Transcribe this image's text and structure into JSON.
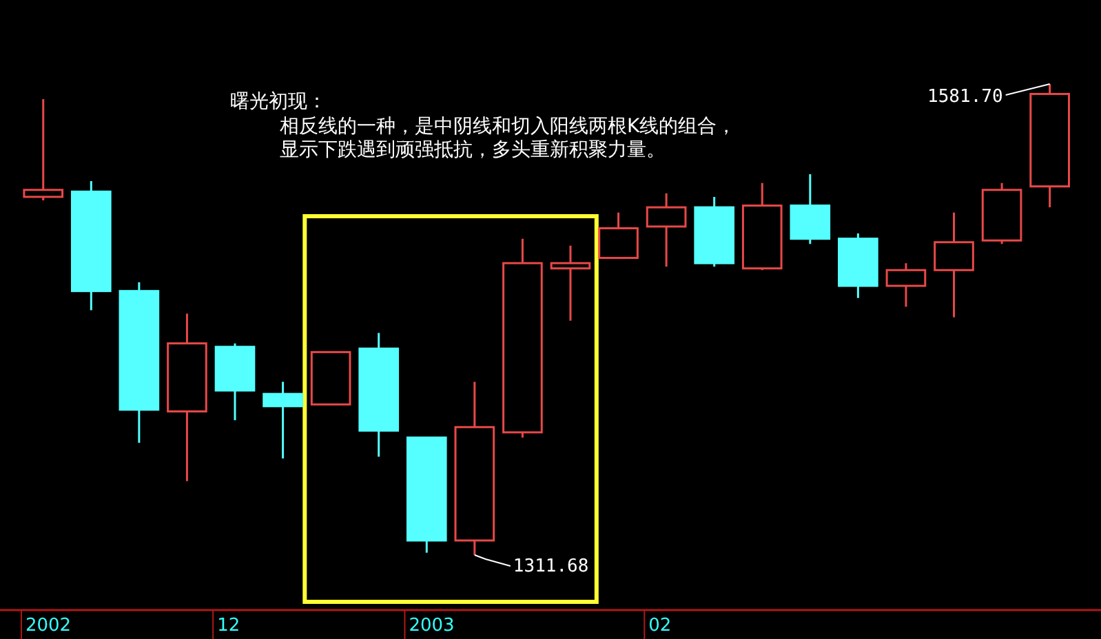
{
  "chart_data": {
    "type": "candlestick",
    "title": "曙光初现：",
    "annotations": [
      "相反线的一种，是中阴线和切入阳线两根K线的组合，",
      "显示下跌遇到顽强抵抗，多头重新积聚力量。",
      "1581.70",
      "1311.68"
    ],
    "categories": [
      "2002",
      null,
      null,
      null,
      "12",
      null,
      null,
      null,
      "2003",
      null,
      null,
      null,
      null,
      "02",
      null,
      null,
      null,
      null,
      null,
      null,
      null,
      null
    ],
    "ohlc": [
      [
        1517,
        1573,
        1515,
        1521
      ],
      [
        1520,
        1526,
        1452,
        1463
      ],
      [
        1463,
        1468,
        1376,
        1395
      ],
      [
        1394,
        1450,
        1354,
        1433
      ],
      [
        1431,
        1433,
        1389,
        1406
      ],
      [
        1404,
        1411,
        1367,
        1397
      ],
      [
        1398,
        1428,
        1398,
        1428
      ],
      [
        1430,
        1439,
        1368,
        1383
      ],
      [
        1379,
        1379,
        1313,
        1320
      ],
      [
        1320,
        1411,
        1311.68,
        1385
      ],
      [
        1382,
        1493,
        1379,
        1479
      ],
      [
        1476,
        1489,
        1446,
        1479
      ],
      [
        1482,
        1508,
        1482,
        1499
      ],
      [
        1500,
        1519,
        1477,
        1511
      ],
      [
        1511,
        1517,
        1477,
        1479
      ],
      [
        1476,
        1525,
        1475,
        1512
      ],
      [
        1512,
        1530,
        1490,
        1493
      ],
      [
        1493,
        1496,
        1459,
        1466
      ],
      [
        1466,
        1479,
        1454,
        1475
      ],
      [
        1475,
        1508,
        1448,
        1491
      ],
      [
        1492,
        1525,
        1490,
        1521
      ],
      [
        1523,
        1581.7,
        1511,
        1576
      ]
    ],
    "colors": [
      "#e84848",
      "#55ffff",
      "#55ffff",
      "#e84848",
      "#55ffff",
      "#55ffff",
      "#e84848",
      "#55ffff",
      "#55ffff",
      "#e84848",
      "#e84848",
      "#e84848",
      "#e84848",
      "#e84848",
      "#55ffff",
      "#e84848",
      "#55ffff",
      "#55ffff",
      "#e84848",
      "#e84848",
      "#e84848",
      "#e84848"
    ],
    "tick_labels": "x"
  }
}
